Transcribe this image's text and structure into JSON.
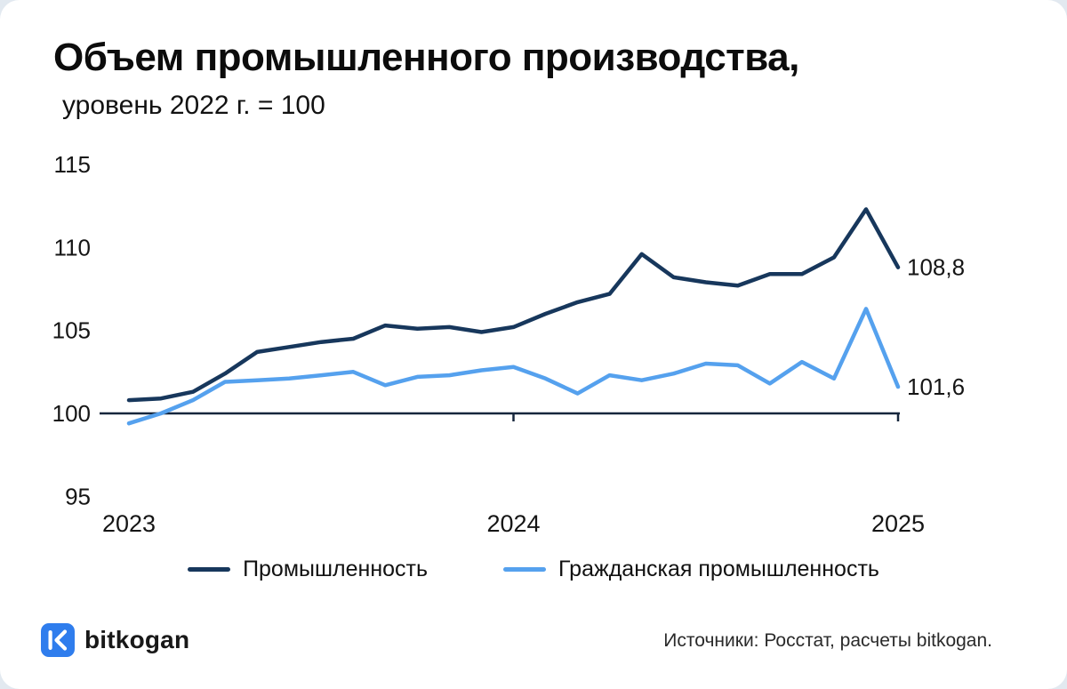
{
  "page": {
    "background_color": "#e2e9f0",
    "card_color": "#ffffff"
  },
  "chart_data": {
    "type": "line",
    "title": "Объем промышленного производства,",
    "subtitle": "уровень 2022 г. = 100",
    "x_unit": "month",
    "x_tick_labels": [
      "2023",
      "2024",
      "2025"
    ],
    "x_tick_indices": [
      0,
      12,
      24
    ],
    "tick_mark_indices": [
      12,
      24
    ],
    "y_ticks": [
      115,
      110,
      105,
      100,
      95
    ],
    "ylim": [
      94,
      116
    ],
    "grid": false,
    "legend_position": "bottom",
    "axis_color": "#16263c",
    "series": [
      {
        "name": "Промышленность",
        "color": "#17375c",
        "end_label": "108,8",
        "values": [
          100.8,
          100.9,
          101.3,
          102.4,
          103.7,
          104.0,
          104.3,
          104.5,
          105.3,
          105.1,
          105.2,
          104.9,
          105.2,
          106.0,
          106.7,
          107.2,
          109.6,
          108.2,
          107.9,
          107.7,
          108.4,
          108.4,
          109.4,
          112.3,
          108.8
        ]
      },
      {
        "name": "Гражданская промышленность",
        "color": "#55a1ee",
        "end_label": "101,6",
        "values": [
          99.4,
          100.0,
          100.8,
          101.9,
          102.0,
          102.1,
          102.3,
          102.5,
          101.7,
          102.2,
          102.3,
          102.6,
          102.8,
          102.1,
          101.2,
          102.3,
          102.0,
          102.4,
          103.0,
          102.9,
          101.8,
          103.1,
          102.1,
          106.3,
          101.6
        ]
      }
    ]
  },
  "footer": {
    "logo_text": "bitkogan",
    "logo_icon_color": "#2f7ded",
    "source": "Источники: Росстат, расчеты bitkogan."
  }
}
